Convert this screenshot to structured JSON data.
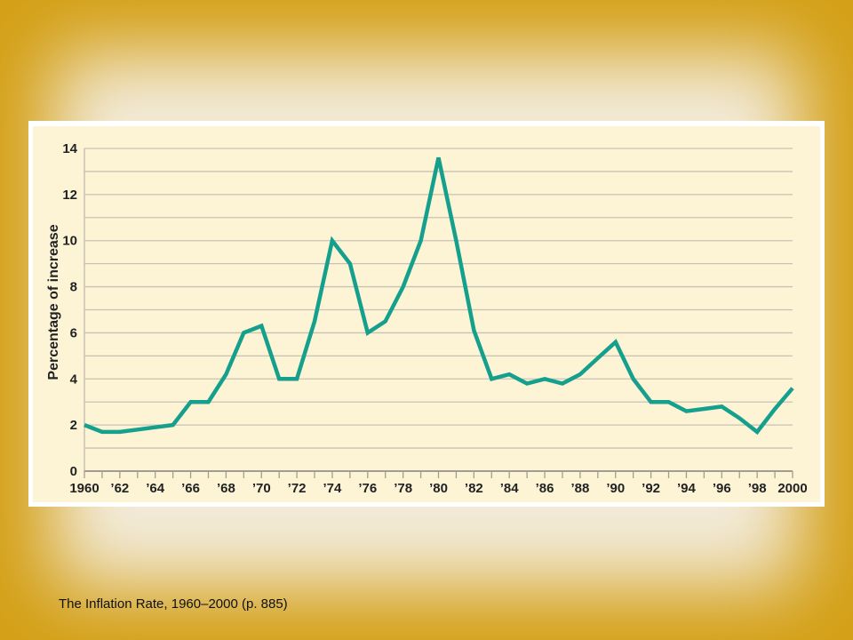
{
  "caption": "The Inflation Rate, 1960–2000 (p. 885)",
  "colors": {
    "background": "#d4a017",
    "panel": "#fdf4d6",
    "grid": "#c9c2b4",
    "line": "#14a08c"
  },
  "chart_data": {
    "type": "line",
    "ylabel": "Percentage of increase",
    "xlabel": "",
    "xlim": [
      1960,
      2000
    ],
    "ylim": [
      0,
      14
    ],
    "y_ticks": [
      0,
      2,
      4,
      6,
      8,
      10,
      12,
      14
    ],
    "x_tick_values": [
      1960,
      1962,
      1964,
      1966,
      1968,
      1970,
      1972,
      1974,
      1976,
      1978,
      1980,
      1982,
      1984,
      1986,
      1988,
      1990,
      1992,
      1994,
      1996,
      1998,
      2000
    ],
    "x_tick_labels": [
      "1960",
      "’62",
      "’64",
      "’66",
      "’68",
      "’70",
      "’72",
      "’74",
      "’76",
      "’78",
      "’80",
      "’82",
      "’84",
      "’86",
      "’88",
      "’90",
      "’92",
      "’94",
      "’96",
      "’98",
      "2000"
    ],
    "grid": true,
    "series": [
      {
        "x": [
          1960,
          1961,
          1962,
          1963,
          1964,
          1965,
          1966,
          1967,
          1968,
          1969,
          1970,
          1971,
          1972,
          1973,
          1974,
          1975,
          1976,
          1977,
          1978,
          1979,
          1980,
          1981,
          1982,
          1983,
          1984,
          1985,
          1986,
          1987,
          1988,
          1989,
          1990,
          1991,
          1992,
          1993,
          1994,
          1995,
          1996,
          1997,
          1998,
          1999,
          2000
        ],
        "values": [
          2.0,
          1.7,
          1.7,
          1.8,
          1.9,
          2.0,
          3.0,
          3.0,
          4.2,
          6.0,
          6.3,
          4.0,
          4.0,
          6.5,
          10.0,
          9.0,
          6.0,
          6.5,
          8.0,
          10.0,
          13.6,
          10.0,
          6.1,
          4.0,
          4.2,
          3.8,
          4.0,
          3.8,
          4.2,
          4.9,
          5.6,
          4.0,
          3.0,
          3.0,
          2.6,
          2.7,
          2.8,
          2.3,
          1.7,
          2.7,
          3.6
        ]
      }
    ]
  }
}
